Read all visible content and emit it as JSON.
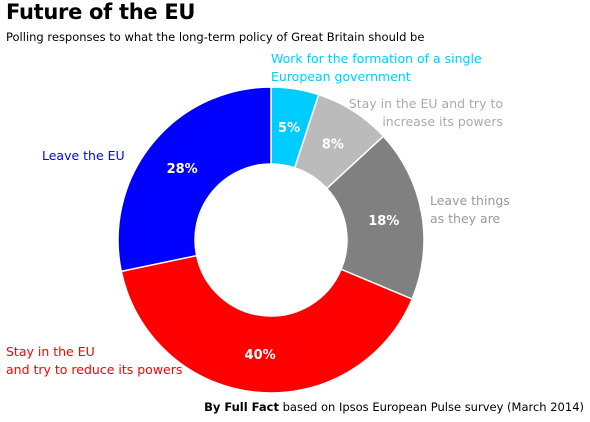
{
  "header": {
    "title": "Future of the EU",
    "subtitle": "Polling responses to what the long-term policy of Great Britain should be"
  },
  "source": {
    "by": "By Full Fact",
    "rest": "based on Ipsos European Pulse survey (March 2014)"
  },
  "chart_data": {
    "type": "pie",
    "donut": true,
    "slices": [
      {
        "label_lines": [
          "Work for the formation of a single",
          "European government"
        ],
        "value": 5,
        "value_label": "5%",
        "color": "#00ccff"
      },
      {
        "label_lines": [
          "Stay in the EU and try to",
          "increase its powers"
        ],
        "value": 8,
        "value_label": "8%",
        "color": "#bbbbbb"
      },
      {
        "label_lines": [
          "Leave things",
          "as they are"
        ],
        "value": 18,
        "value_label": "18%",
        "color": "#808080"
      },
      {
        "label_lines": [
          "Stay in the EU",
          "and try to reduce its powers"
        ],
        "value": 40,
        "value_label": "40%",
        "color": "#ff0000"
      },
      {
        "label_lines": [
          "Leave the EU"
        ],
        "value": 28,
        "value_label": "28%",
        "color": "#0000ff"
      }
    ],
    "label_colors": [
      "#00ccff",
      "#aaaaaa",
      "#999999",
      "#ff0000",
      "#0000ff"
    ]
  }
}
